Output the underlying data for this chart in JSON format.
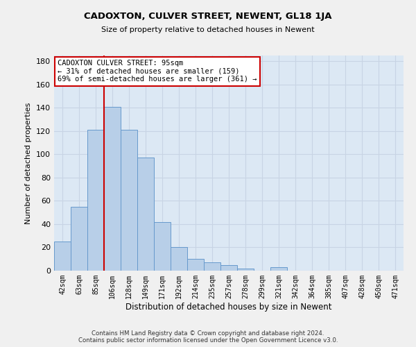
{
  "title": "CADOXTON, CULVER STREET, NEWENT, GL18 1JA",
  "subtitle": "Size of property relative to detached houses in Newent",
  "xlabel": "Distribution of detached houses by size in Newent",
  "ylabel": "Number of detached properties",
  "categories": [
    "42sqm",
    "63sqm",
    "85sqm",
    "106sqm",
    "128sqm",
    "149sqm",
    "171sqm",
    "192sqm",
    "214sqm",
    "235sqm",
    "257sqm",
    "278sqm",
    "299sqm",
    "321sqm",
    "342sqm",
    "364sqm",
    "385sqm",
    "407sqm",
    "428sqm",
    "450sqm",
    "471sqm"
  ],
  "values": [
    25,
    55,
    121,
    141,
    121,
    97,
    42,
    20,
    10,
    7,
    5,
    2,
    0,
    3,
    0,
    0,
    0,
    0,
    0,
    0,
    0
  ],
  "bar_color": "#b8cfe8",
  "bar_edge_color": "#6699cc",
  "vline_color": "#cc0000",
  "vline_pos": 2.5,
  "annotation_text": "CADOXTON CULVER STREET: 95sqm\n← 31% of detached houses are smaller (159)\n69% of semi-detached houses are larger (361) →",
  "annotation_box_color": "#ffffff",
  "annotation_box_edge": "#cc0000",
  "grid_color": "#c8d4e4",
  "background_color": "#dce8f4",
  "fig_background": "#f0f0f0",
  "footer_line1": "Contains HM Land Registry data © Crown copyright and database right 2024.",
  "footer_line2": "Contains public sector information licensed under the Open Government Licence v3.0.",
  "ylim": [
    0,
    185
  ],
  "yticks": [
    0,
    20,
    40,
    60,
    80,
    100,
    120,
    140,
    160,
    180
  ]
}
